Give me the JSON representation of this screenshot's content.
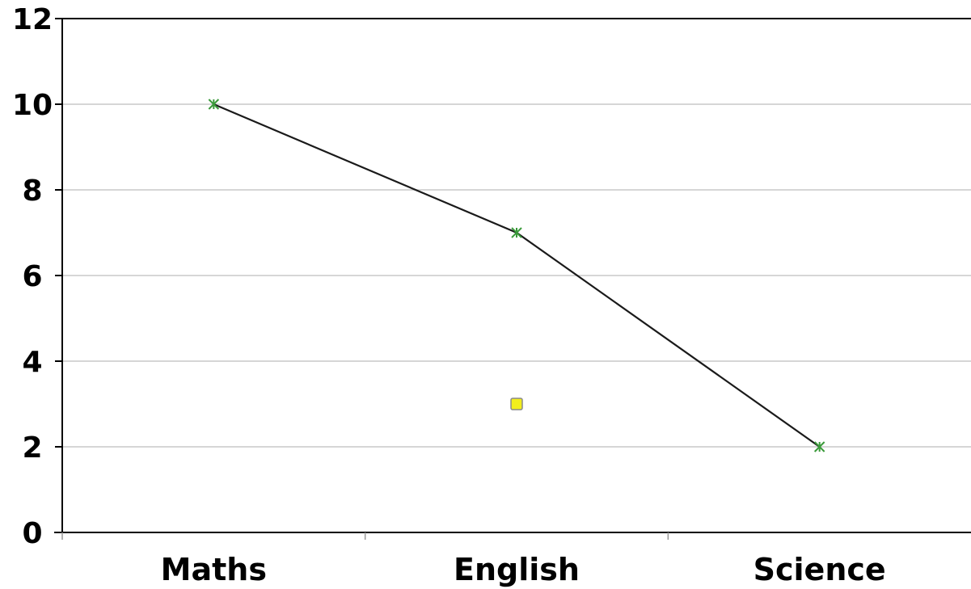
{
  "chart_data": {
    "type": "line",
    "title": "",
    "xlabel": "",
    "ylabel": "",
    "categories": [
      "Maths",
      "English",
      "Science"
    ],
    "ylim": [
      0,
      12
    ],
    "yticks": [
      0,
      2,
      4,
      6,
      8,
      10,
      12
    ],
    "grid": true,
    "legend": "none",
    "series": [
      {
        "values": [
          10,
          7,
          2
        ],
        "marker": "star",
        "color": "#1a1a1a",
        "marker_color": "#3a9a3a",
        "connected": true
      },
      {
        "values": [
          null,
          3,
          null
        ],
        "marker": "square",
        "color": "#f2ee1c",
        "marker_border": "#8a8a8a",
        "connected": false
      }
    ]
  }
}
